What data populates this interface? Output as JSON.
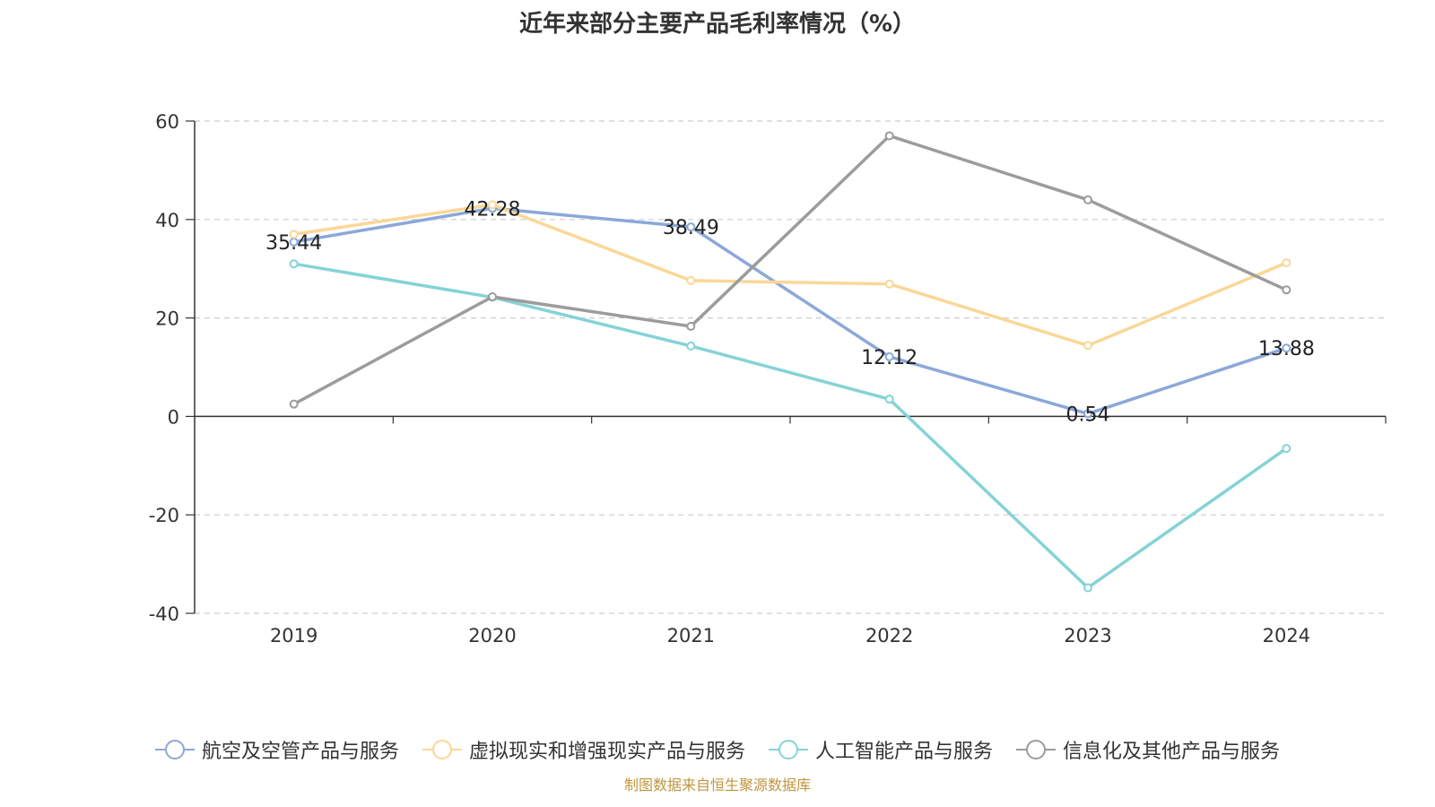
{
  "chart_data": {
    "type": "line",
    "title": "近年来部分主要产品毛利率情况（%）",
    "categories": [
      "2019",
      "2020",
      "2021",
      "2022",
      "2023",
      "2024"
    ],
    "ylim": [
      -40,
      60
    ],
    "yticks": [
      60,
      40,
      20,
      0,
      -20,
      -40
    ],
    "grid": true,
    "legend_position": "bottom",
    "series": [
      {
        "name": "航空及空管产品与服务",
        "color": "#8ba8d8",
        "values": [
          35.44,
          42.28,
          38.49,
          12.12,
          0.54,
          13.88
        ],
        "show_labels": true
      },
      {
        "name": "虚拟现实和增强现实产品与服务",
        "color": "#fad797",
        "values": [
          37.0,
          43.0,
          27.6,
          26.9,
          14.4,
          31.2
        ],
        "show_labels": false
      },
      {
        "name": "人工智能产品与服务",
        "color": "#85d3d6",
        "values": [
          31.0,
          24.2,
          14.3,
          3.5,
          -34.8,
          -6.5
        ],
        "show_labels": false
      },
      {
        "name": "信息化及其他产品与服务",
        "color": "#9c9c9c",
        "values": [
          2.5,
          24.3,
          18.3,
          57.0,
          44.0,
          25.7
        ],
        "show_labels": false
      }
    ]
  },
  "source_text": "制图数据来自恒生聚源数据库"
}
